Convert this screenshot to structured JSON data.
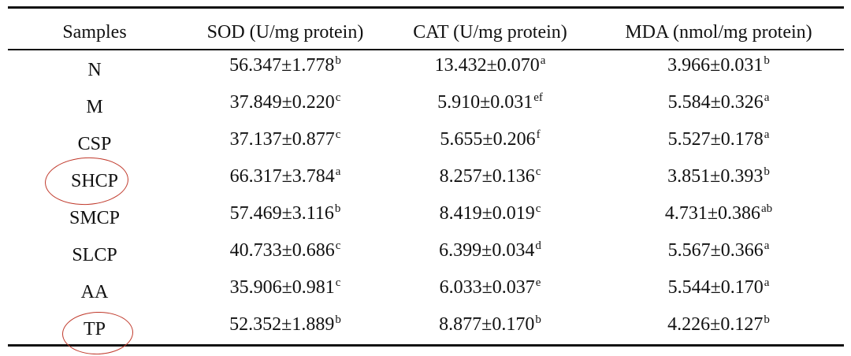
{
  "table": {
    "headers": {
      "samples": "Samples",
      "sod": "SOD (U/mg protein)",
      "cat": "CAT (U/mg protein)",
      "mda": "MDA (nmol/mg protein)"
    },
    "rows": [
      {
        "sample": "N",
        "sod": "56.347±1.778",
        "sod_sup": "b",
        "cat": "13.432±0.070",
        "cat_sup": "a",
        "mda": "3.966±0.031",
        "mda_sup": "b"
      },
      {
        "sample": "M",
        "sod": "37.849±0.220",
        "sod_sup": "c",
        "cat": "5.910±0.031",
        "cat_sup": "ef",
        "mda": "5.584±0.326",
        "mda_sup": "a"
      },
      {
        "sample": "CSP",
        "sod": "37.137±0.877",
        "sod_sup": "c",
        "cat": "5.655±0.206",
        "cat_sup": "f",
        "mda": "5.527±0.178",
        "mda_sup": "a"
      },
      {
        "sample": "SHCP",
        "sod": "66.317±3.784",
        "sod_sup": "a",
        "cat": "8.257±0.136",
        "cat_sup": "c",
        "mda": "3.851±0.393",
        "mda_sup": "b"
      },
      {
        "sample": "SMCP",
        "sod": "57.469±3.116",
        "sod_sup": "b",
        "cat": "8.419±0.019",
        "cat_sup": "c",
        "mda": "4.731±0.386",
        "mda_sup": "ab"
      },
      {
        "sample": "SLCP",
        "sod": "40.733±0.686",
        "sod_sup": "c",
        "cat": "6.399±0.034",
        "cat_sup": "d",
        "mda": "5.567±0.366",
        "mda_sup": "a"
      },
      {
        "sample": "AA",
        "sod": "35.906±0.981",
        "sod_sup": "c",
        "cat": "6.033±0.037",
        "cat_sup": "e",
        "mda": "5.544±0.170",
        "mda_sup": "a"
      },
      {
        "sample": "TP",
        "sod": "52.352±1.889",
        "sod_sup": "b",
        "cat": "8.877±0.170",
        "cat_sup": "b",
        "mda": "4.226±0.127",
        "mda_sup": "b"
      }
    ]
  },
  "annotations": {
    "highlighted_samples": [
      "SHCP",
      "TP"
    ],
    "highlight_color": "#c0392b",
    "shape": "hand-drawn ellipse"
  }
}
